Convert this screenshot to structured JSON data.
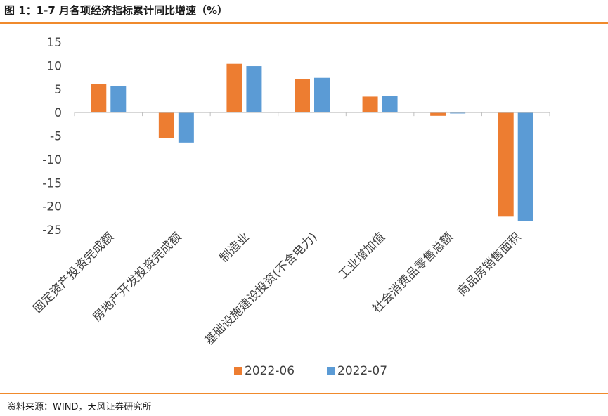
{
  "figure": {
    "title": "图 1：1-7 月各项经济指标累计同比增速（%）",
    "source": "资料来源：WIND，天风证券研究所"
  },
  "colors": {
    "accent_rule": "#f08a2c",
    "series_2022_06": "#ed7d31",
    "series_2022_07": "#5b9bd5"
  },
  "chart_data": {
    "type": "bar",
    "categories": [
      "固定资产投资完成额",
      "房地产开发投资完成额",
      "制造业",
      "基础设施建设投资(不含电力)",
      "工业增加值",
      "社会消费品零售总额",
      "商品房销售面积"
    ],
    "series": [
      {
        "name": "2022-06",
        "color": "#ed7d31",
        "values": [
          6.1,
          -5.4,
          10.4,
          7.1,
          3.4,
          -0.7,
          -22.2
        ]
      },
      {
        "name": "2022-07",
        "color": "#5b9bd5",
        "values": [
          5.7,
          -6.4,
          9.9,
          7.4,
          3.5,
          -0.2,
          -23.1
        ]
      }
    ],
    "ylim": [
      -25,
      15
    ],
    "yticks": [
      15,
      10,
      5,
      0,
      -5,
      -10,
      -15,
      -20,
      -25
    ],
    "legend": "bottom",
    "grid": false
  }
}
